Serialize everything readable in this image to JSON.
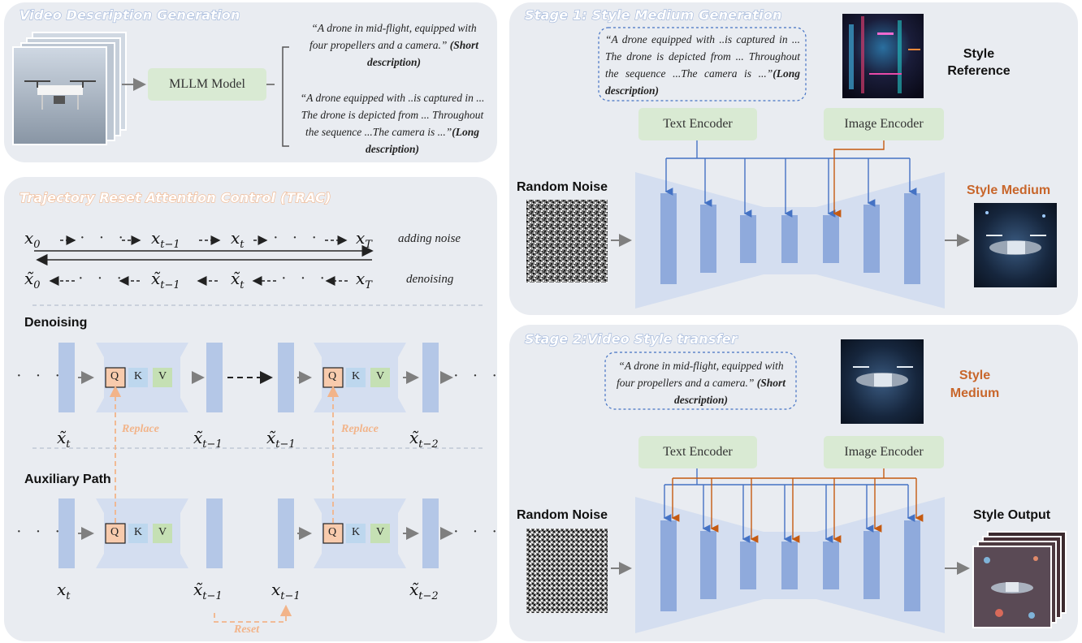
{
  "panels": {
    "video_desc_title": "Video Description Generation",
    "trac_title": "Trajectory Reset Attention Control (TRAC)",
    "stage1_title": "Stage 1: Style Medium Generation",
    "stage2_title": "Stage 2:Video Style transfer"
  },
  "video_desc": {
    "mllm_label": "MLLM Model",
    "short_quote": "“A drone in mid-flight, equipped with four propellers and a camera.”",
    "short_tag": "(Short description)",
    "long_quote": "“A drone equipped with ..is captured in ... The drone is depicted from ... Throughout the sequence ...The camera is ...”",
    "long_tag": "(Long description)"
  },
  "trac": {
    "adding_noise": "adding noise",
    "denoising": "denoising",
    "denoising_heading": "Denoising",
    "auxiliary_heading": "Auxiliary Path",
    "q": "Q",
    "k": "K",
    "v": "V",
    "replace": "Replace",
    "reset": "Reset",
    "ellipsis": "· · ·"
  },
  "stage1": {
    "quote": "“A drone equipped with ..is captured in ... The drone is depicted from ... Throughout the sequence ...The camera is ...”",
    "tag": "(Long description)",
    "text_encoder": "Text Encoder",
    "image_encoder": "Image Encoder",
    "style_reference": "Style Reference",
    "random_noise": "Random Noise",
    "style_medium": "Style Medium"
  },
  "stage2": {
    "quote": "“A drone in mid-flight, equipped with four propellers and a camera.”",
    "tag": "(Short description)",
    "text_encoder": "Text Encoder",
    "image_encoder": "Image Encoder",
    "style_medium": "Style Medium",
    "random_noise": "Random Noise",
    "style_output": "Style Output"
  },
  "colors": {
    "panel_bg": "#e9ecf1",
    "encoder_green": "#d9ead3",
    "unet_blue": "#8faadc",
    "arrow_blue": "#4472c4",
    "arrow_orange": "#c55a11",
    "accent_orange": "#f2b48a"
  }
}
